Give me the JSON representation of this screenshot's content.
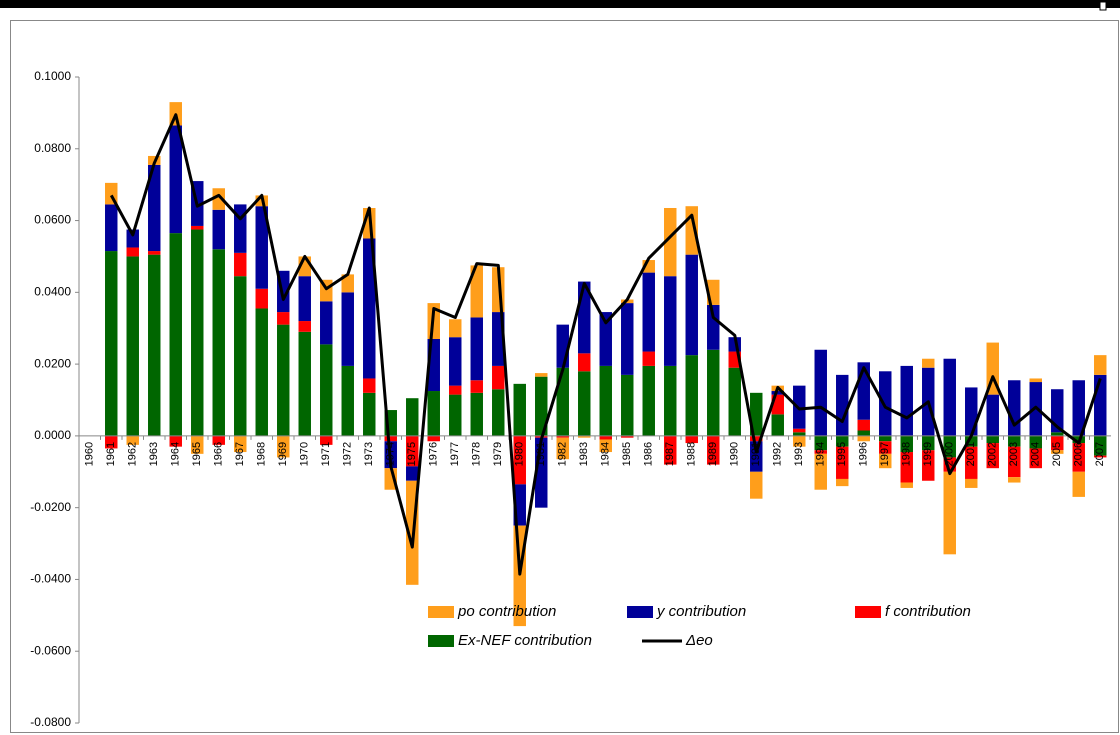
{
  "chart_data": {
    "type": "bar",
    "categories": [
      "1960",
      "1961",
      "1962",
      "1963",
      "1964",
      "1965",
      "1966",
      "1967",
      "1968",
      "1969",
      "1970",
      "1971",
      "1972",
      "1973",
      "1974",
      "1975",
      "1976",
      "1977",
      "1978",
      "1979",
      "1980",
      "1981",
      "1982",
      "1983",
      "1984",
      "1985",
      "1986",
      "1987",
      "1988",
      "1989",
      "1990",
      "1991",
      "1992",
      "1993",
      "1994",
      "1995",
      "1996",
      "1997",
      "1998",
      "1999",
      "2000",
      "2001",
      "2002",
      "2003",
      "2004",
      "2005",
      "2006",
      "2007"
    ],
    "ylim": [
      -0.08,
      0.1
    ],
    "yticks": [
      {
        "value": -0.08,
        "label": "-0.0800"
      },
      {
        "value": -0.06,
        "label": "-0.0600"
      },
      {
        "value": -0.04,
        "label": "-0.0400"
      },
      {
        "value": -0.02,
        "label": "-0.0200"
      },
      {
        "value": 0,
        "label": "0.0000"
      },
      {
        "value": 0.02,
        "label": "0.0200"
      },
      {
        "value": 0.04,
        "label": "0.0400"
      },
      {
        "value": 0.06,
        "label": "0.0600"
      },
      {
        "value": 0.08,
        "label": "0.0800"
      },
      {
        "value": 0.1,
        "label": "0.1000"
      }
    ],
    "series": [
      {
        "name": "po contribution",
        "color": "#ff9e1b",
        "values": [
          0,
          0.006,
          -0.0025,
          0.0025,
          0.0065,
          -0.005,
          0.006,
          -0.0045,
          0.003,
          -0.006,
          0.0055,
          0.006,
          0.005,
          0.0085,
          -0.006,
          -0.029,
          0.01,
          0.005,
          0.0145,
          0.0125,
          -0.028,
          0.001,
          -0.006,
          -0.0005,
          -0.0035,
          0.001,
          0.0035,
          0.019,
          0.0135,
          0.007,
          0,
          -0.0075,
          0.0015,
          -0.003,
          -0.01,
          -0.002,
          -0.0015,
          -0.004,
          -0.0015,
          0.0025,
          -0.023,
          -0.0025,
          0.0145,
          -0.0015,
          0.001,
          -0.001,
          -0.007,
          0.0055
        ]
      },
      {
        "name": "y contribution",
        "color": "#000099",
        "values": [
          0,
          0.013,
          0.005,
          0.024,
          0.03,
          0.0125,
          0.011,
          0.0135,
          0.023,
          0.0115,
          0.0125,
          0.012,
          0.0205,
          0.039,
          -0.0075,
          -0.004,
          0.0145,
          0.0135,
          0.0175,
          0.015,
          -0.0115,
          -0.0195,
          0.012,
          0.02,
          0.015,
          0.02,
          0.022,
          0.025,
          0.028,
          0.0125,
          0.004,
          -0.0085,
          0.001,
          0.012,
          0.024,
          0.017,
          0.016,
          0.018,
          0.0195,
          0.019,
          0.0215,
          0.0135,
          0.0115,
          0.0155,
          0.015,
          0.012,
          0.0155,
          0.017
        ]
      },
      {
        "name": "f contribution",
        "color": "#ff0000",
        "values": [
          0,
          -0.0035,
          0.0025,
          0.001,
          -0.003,
          0.001,
          -0.0025,
          0.0065,
          0.0055,
          0.0035,
          0.003,
          -0.0025,
          0,
          0.004,
          -0.0015,
          -0.0085,
          -0.0015,
          0.0025,
          0.0035,
          0.0065,
          -0.0135,
          -0.0005,
          -0.0005,
          0.005,
          -0.001,
          -0.0005,
          0.004,
          -0.008,
          -0.002,
          -0.008,
          0.0045,
          -0.0015,
          0.0055,
          0.001,
          -0.001,
          -0.009,
          0.003,
          -0.0035,
          -0.0085,
          -0.0085,
          -0.004,
          -0.009,
          -0.007,
          -0.0085,
          -0.0055,
          -0.004,
          -0.008,
          -0.0005
        ]
      },
      {
        "name": "Ex-NEF contribution",
        "color": "#006600",
        "values": [
          0,
          0.0515,
          0.05,
          0.0505,
          0.0565,
          0.0575,
          0.052,
          0.0445,
          0.0355,
          0.031,
          0.029,
          0.0255,
          0.0195,
          0.012,
          0.0072,
          0.0105,
          0.0125,
          0.0115,
          0.012,
          0.013,
          0.0145,
          0.0165,
          0.019,
          0.018,
          0.0195,
          0.017,
          0.0195,
          0.0195,
          0.0225,
          0.024,
          0.019,
          0.012,
          0.006,
          0.001,
          -0.004,
          -0.003,
          0.0015,
          -0.0015,
          -0.0045,
          -0.004,
          -0.006,
          -0.003,
          -0.002,
          -0.003,
          -0.0035,
          0.001,
          -0.002,
          -0.0055
        ]
      },
      {
        "name": "Δeo",
        "color": "#000000",
        "type": "line",
        "values": [
          null,
          0.067,
          0.056,
          0.076,
          0.0895,
          0.064,
          0.067,
          0.0605,
          0.067,
          0.038,
          0.05,
          0.041,
          0.045,
          0.0635,
          -0.0085,
          -0.031,
          0.0355,
          0.033,
          0.048,
          0.0475,
          -0.0385,
          -0.001,
          0.0185,
          0.0425,
          0.0315,
          0.038,
          0.0495,
          0.0555,
          0.0615,
          0.033,
          0.028,
          -0.0045,
          0.0135,
          0.0075,
          0.008,
          0.004,
          0.019,
          0.008,
          0.005,
          0.0095,
          -0.0105,
          0,
          0.0165,
          0.003,
          0.008,
          0.0025,
          -0.002,
          0.016
        ]
      }
    ]
  }
}
